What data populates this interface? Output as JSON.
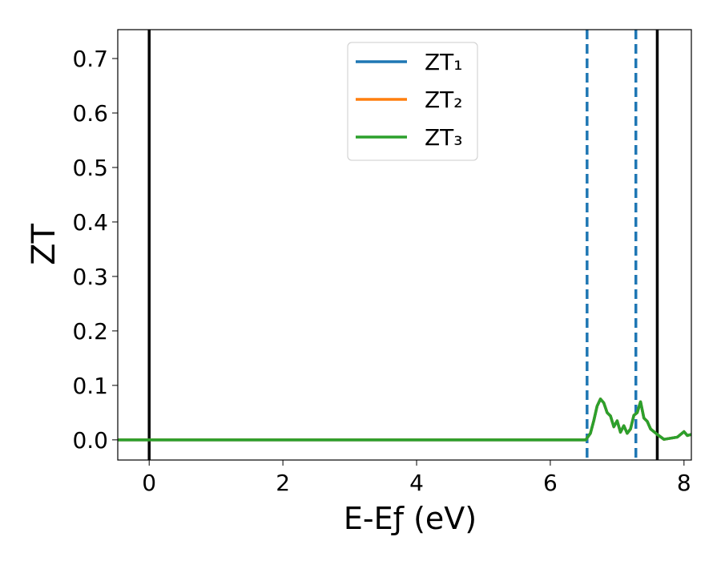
{
  "chart_data": {
    "type": "line",
    "x_label": "E-Eƒ (eV)",
    "y_label": "ZT",
    "xlim": [
      -0.47,
      8.11
    ],
    "ylim": [
      -0.037,
      0.753
    ],
    "xticks": [
      0,
      2,
      4,
      6,
      8
    ],
    "yticks": [
      {
        "value": 0,
        "label": "0.0"
      },
      0.1,
      0.2,
      0.3,
      0.4,
      0.5,
      0.6,
      0.7
    ],
    "legend": "upper center",
    "x": [
      -0.47,
      6.53,
      6.6,
      6.65,
      6.7,
      6.75,
      6.8,
      6.85,
      6.9,
      6.95,
      7.0,
      7.05,
      7.1,
      7.15,
      7.2,
      7.25,
      7.3,
      7.35,
      7.4,
      7.45,
      7.5,
      7.6,
      7.7,
      7.8,
      7.9,
      8.0,
      8.05,
      8.11
    ],
    "series": [
      {
        "name": "ZT₁",
        "color": "#1f77b4",
        "values": [
          0,
          0,
          0.012,
          0.035,
          0.062,
          0.075,
          0.068,
          0.05,
          0.044,
          0.024,
          0.035,
          0.014,
          0.026,
          0.012,
          0.02,
          0.045,
          0.05,
          0.07,
          0.04,
          0.034,
          0.02,
          0.01,
          0.001,
          0.003,
          0.005,
          0.015,
          0.008,
          0.01
        ]
      },
      {
        "name": "ZT₂",
        "color": "#ff7f0e",
        "values": [
          0,
          0,
          0.012,
          0.035,
          0.062,
          0.075,
          0.068,
          0.05,
          0.044,
          0.024,
          0.035,
          0.014,
          0.026,
          0.012,
          0.02,
          0.045,
          0.05,
          0.07,
          0.04,
          0.034,
          0.02,
          0.01,
          0.001,
          0.003,
          0.005,
          0.015,
          0.008,
          0.01
        ]
      },
      {
        "name": "ZT₃",
        "color": "#2ca02c",
        "values": [
          0,
          0,
          0.012,
          0.035,
          0.062,
          0.075,
          0.068,
          0.05,
          0.044,
          0.024,
          0.035,
          0.014,
          0.026,
          0.012,
          0.02,
          0.045,
          0.05,
          0.07,
          0.04,
          0.034,
          0.02,
          0.01,
          0.001,
          0.003,
          0.005,
          0.015,
          0.008,
          0.01
        ]
      }
    ],
    "vlines": [
      {
        "x": 0,
        "color": "#000000",
        "style": "solid"
      },
      {
        "x": 7.6,
        "color": "#000000",
        "style": "solid"
      },
      {
        "x": 6.55,
        "color": "#1f77b4",
        "style": "dashed"
      },
      {
        "x": 7.28,
        "color": "#1f77b4",
        "style": "dashed"
      }
    ]
  }
}
